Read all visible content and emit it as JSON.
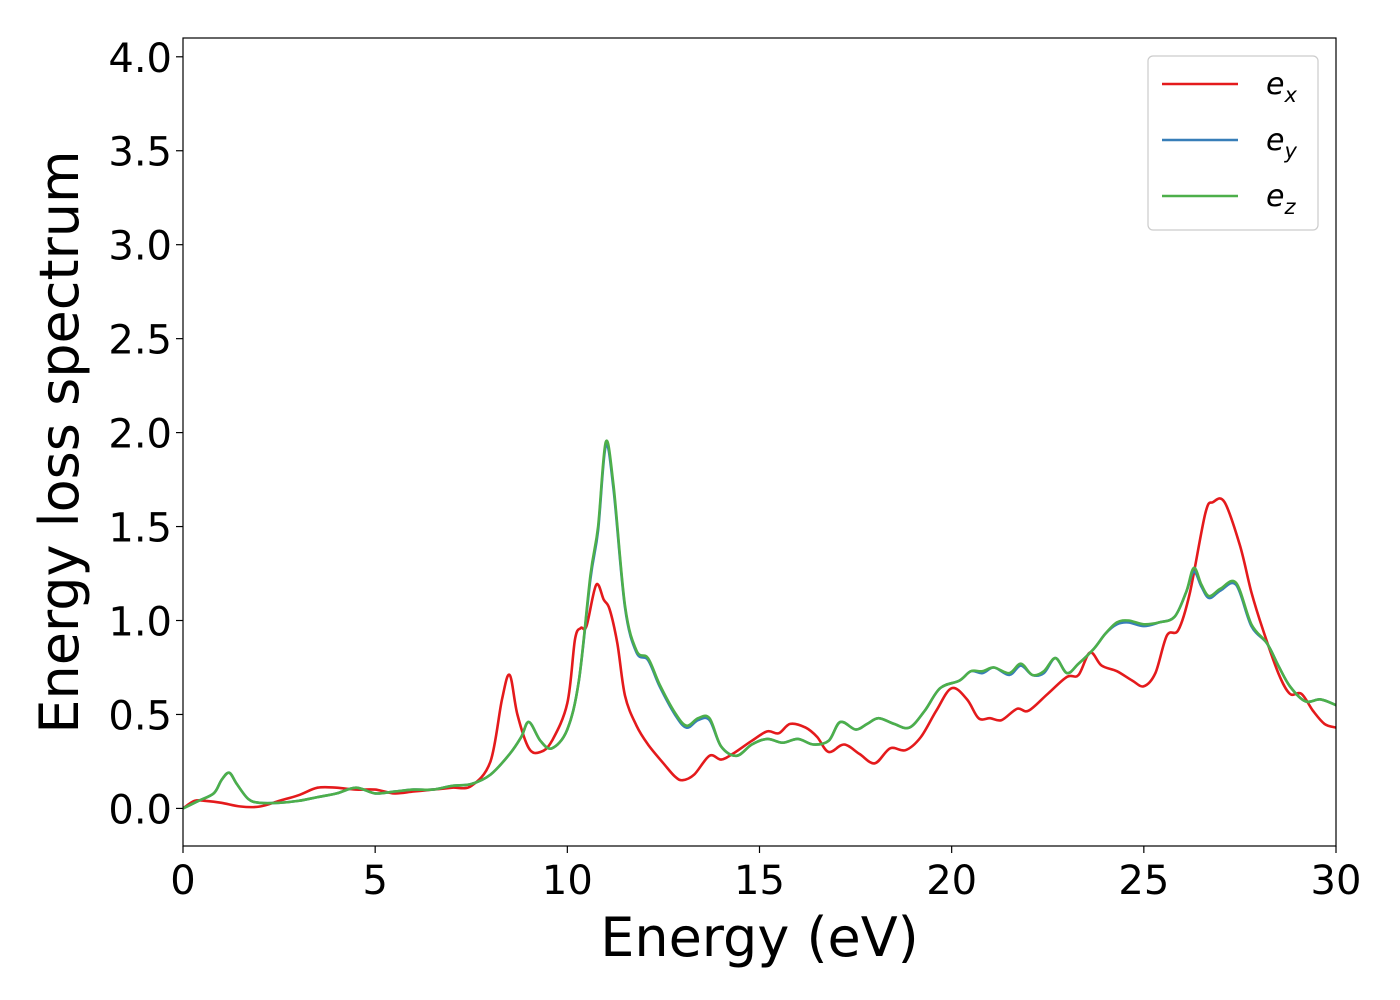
{
  "chart_data": {
    "type": "line",
    "xlabel": "Energy (eV)",
    "ylabel": "Energy loss spectrum",
    "xlim": [
      0,
      30
    ],
    "ylim": [
      -0.2,
      4.1
    ],
    "xticks": [
      0,
      5,
      10,
      15,
      20,
      25,
      30
    ],
    "yticks": [
      0.0,
      0.5,
      1.0,
      1.5,
      2.0,
      2.5,
      3.0,
      3.5,
      4.0
    ],
    "xtick_labels": [
      "0",
      "5",
      "10",
      "15",
      "20",
      "25",
      "30"
    ],
    "ytick_labels": [
      "0.0",
      "0.5",
      "1.0",
      "1.5",
      "2.0",
      "2.5",
      "3.0",
      "3.5",
      "4.0"
    ],
    "grid": false,
    "legend_position": "top-right",
    "series": [
      {
        "name": "e_x",
        "label_base": "e",
        "label_sub": "x",
        "color": "#e41a1c",
        "points": [
          [
            0.0,
            0.0
          ],
          [
            0.3,
            0.04
          ],
          [
            0.6,
            0.04
          ],
          [
            1.0,
            0.03
          ],
          [
            1.5,
            0.01
          ],
          [
            2.0,
            0.01
          ],
          [
            2.5,
            0.04
          ],
          [
            3.0,
            0.07
          ],
          [
            3.5,
            0.11
          ],
          [
            4.0,
            0.11
          ],
          [
            4.5,
            0.1
          ],
          [
            5.0,
            0.1
          ],
          [
            5.5,
            0.08
          ],
          [
            6.0,
            0.09
          ],
          [
            6.5,
            0.1
          ],
          [
            7.0,
            0.11
          ],
          [
            7.5,
            0.12
          ],
          [
            8.0,
            0.25
          ],
          [
            8.3,
            0.58
          ],
          [
            8.5,
            0.71
          ],
          [
            8.7,
            0.5
          ],
          [
            9.0,
            0.32
          ],
          [
            9.3,
            0.3
          ],
          [
            9.6,
            0.36
          ],
          [
            10.0,
            0.56
          ],
          [
            10.2,
            0.9
          ],
          [
            10.35,
            0.96
          ],
          [
            10.5,
            0.97
          ],
          [
            10.75,
            1.19
          ],
          [
            10.95,
            1.11
          ],
          [
            11.1,
            1.06
          ],
          [
            11.3,
            0.88
          ],
          [
            11.5,
            0.6
          ],
          [
            11.8,
            0.44
          ],
          [
            12.1,
            0.34
          ],
          [
            12.5,
            0.24
          ],
          [
            12.8,
            0.17
          ],
          [
            13.0,
            0.15
          ],
          [
            13.3,
            0.18
          ],
          [
            13.7,
            0.28
          ],
          [
            14.0,
            0.26
          ],
          [
            14.3,
            0.29
          ],
          [
            14.8,
            0.36
          ],
          [
            15.2,
            0.41
          ],
          [
            15.5,
            0.4
          ],
          [
            15.8,
            0.45
          ],
          [
            16.2,
            0.43
          ],
          [
            16.5,
            0.38
          ],
          [
            16.8,
            0.3
          ],
          [
            17.2,
            0.34
          ],
          [
            17.6,
            0.29
          ],
          [
            18.0,
            0.24
          ],
          [
            18.4,
            0.32
          ],
          [
            18.8,
            0.31
          ],
          [
            19.2,
            0.38
          ],
          [
            19.6,
            0.52
          ],
          [
            20.0,
            0.64
          ],
          [
            20.4,
            0.58
          ],
          [
            20.7,
            0.48
          ],
          [
            21.0,
            0.48
          ],
          [
            21.3,
            0.47
          ],
          [
            21.7,
            0.53
          ],
          [
            22.0,
            0.52
          ],
          [
            22.5,
            0.61
          ],
          [
            23.0,
            0.7
          ],
          [
            23.3,
            0.71
          ],
          [
            23.6,
            0.83
          ],
          [
            23.9,
            0.76
          ],
          [
            24.3,
            0.73
          ],
          [
            24.7,
            0.68
          ],
          [
            25.0,
            0.65
          ],
          [
            25.3,
            0.72
          ],
          [
            25.6,
            0.92
          ],
          [
            25.9,
            0.95
          ],
          [
            26.2,
            1.15
          ],
          [
            26.6,
            1.57
          ],
          [
            26.8,
            1.63
          ],
          [
            27.1,
            1.63
          ],
          [
            27.5,
            1.4
          ],
          [
            27.8,
            1.15
          ],
          [
            28.1,
            0.95
          ],
          [
            28.5,
            0.72
          ],
          [
            28.8,
            0.61
          ],
          [
            29.1,
            0.61
          ],
          [
            29.4,
            0.52
          ],
          [
            29.7,
            0.45
          ],
          [
            30.0,
            0.43
          ]
        ]
      },
      {
        "name": "e_y",
        "label_base": "e",
        "label_sub": "y",
        "color": "#377eb8",
        "points": [
          [
            0.0,
            0.0
          ],
          [
            0.4,
            0.04
          ],
          [
            0.8,
            0.08
          ],
          [
            1.0,
            0.15
          ],
          [
            1.2,
            0.19
          ],
          [
            1.4,
            0.13
          ],
          [
            1.7,
            0.05
          ],
          [
            2.0,
            0.03
          ],
          [
            2.5,
            0.03
          ],
          [
            3.0,
            0.04
          ],
          [
            3.5,
            0.06
          ],
          [
            4.0,
            0.08
          ],
          [
            4.5,
            0.11
          ],
          [
            5.0,
            0.08
          ],
          [
            5.5,
            0.09
          ],
          [
            6.0,
            0.1
          ],
          [
            6.5,
            0.1
          ],
          [
            7.0,
            0.12
          ],
          [
            7.5,
            0.13
          ],
          [
            8.0,
            0.18
          ],
          [
            8.5,
            0.29
          ],
          [
            8.8,
            0.38
          ],
          [
            9.0,
            0.46
          ],
          [
            9.3,
            0.36
          ],
          [
            9.6,
            0.32
          ],
          [
            10.0,
            0.42
          ],
          [
            10.3,
            0.68
          ],
          [
            10.6,
            1.22
          ],
          [
            10.8,
            1.48
          ],
          [
            11.0,
            1.93
          ],
          [
            11.2,
            1.7
          ],
          [
            11.5,
            1.07
          ],
          [
            11.8,
            0.83
          ],
          [
            12.1,
            0.79
          ],
          [
            12.4,
            0.65
          ],
          [
            12.8,
            0.5
          ],
          [
            13.1,
            0.43
          ],
          [
            13.4,
            0.47
          ],
          [
            13.7,
            0.47
          ],
          [
            14.0,
            0.33
          ],
          [
            14.4,
            0.28
          ],
          [
            14.8,
            0.34
          ],
          [
            15.2,
            0.37
          ],
          [
            15.6,
            0.35
          ],
          [
            16.0,
            0.37
          ],
          [
            16.4,
            0.34
          ],
          [
            16.8,
            0.36
          ],
          [
            17.1,
            0.46
          ],
          [
            17.5,
            0.42
          ],
          [
            17.8,
            0.45
          ],
          [
            18.1,
            0.48
          ],
          [
            18.5,
            0.45
          ],
          [
            18.9,
            0.43
          ],
          [
            19.3,
            0.52
          ],
          [
            19.7,
            0.64
          ],
          [
            20.2,
            0.68
          ],
          [
            20.5,
            0.73
          ],
          [
            20.8,
            0.72
          ],
          [
            21.1,
            0.75
          ],
          [
            21.5,
            0.71
          ],
          [
            21.8,
            0.76
          ],
          [
            22.1,
            0.71
          ],
          [
            22.4,
            0.72
          ],
          [
            22.7,
            0.8
          ],
          [
            23.0,
            0.72
          ],
          [
            23.3,
            0.77
          ],
          [
            23.7,
            0.85
          ],
          [
            24.0,
            0.93
          ],
          [
            24.3,
            0.98
          ],
          [
            24.6,
            0.99
          ],
          [
            25.0,
            0.97
          ],
          [
            25.4,
            0.99
          ],
          [
            25.8,
            1.02
          ],
          [
            26.1,
            1.15
          ],
          [
            26.3,
            1.26
          ],
          [
            26.5,
            1.18
          ],
          [
            26.7,
            1.12
          ],
          [
            27.0,
            1.16
          ],
          [
            27.4,
            1.19
          ],
          [
            27.8,
            0.97
          ],
          [
            28.2,
            0.88
          ],
          [
            28.5,
            0.76
          ],
          [
            28.8,
            0.65
          ],
          [
            29.2,
            0.57
          ],
          [
            29.6,
            0.58
          ],
          [
            30.0,
            0.55
          ]
        ]
      },
      {
        "name": "e_z",
        "label_base": "e",
        "label_sub": "z",
        "color": "#4daf4a",
        "points": [
          [
            0.0,
            0.0
          ],
          [
            0.4,
            0.04
          ],
          [
            0.8,
            0.08
          ],
          [
            1.0,
            0.15
          ],
          [
            1.2,
            0.19
          ],
          [
            1.4,
            0.13
          ],
          [
            1.7,
            0.05
          ],
          [
            2.0,
            0.03
          ],
          [
            2.5,
            0.03
          ],
          [
            3.0,
            0.04
          ],
          [
            3.5,
            0.06
          ],
          [
            4.0,
            0.08
          ],
          [
            4.5,
            0.11
          ],
          [
            5.0,
            0.08
          ],
          [
            5.5,
            0.09
          ],
          [
            6.0,
            0.1
          ],
          [
            6.5,
            0.1
          ],
          [
            7.0,
            0.12
          ],
          [
            7.5,
            0.13
          ],
          [
            8.0,
            0.18
          ],
          [
            8.5,
            0.29
          ],
          [
            8.8,
            0.38
          ],
          [
            9.0,
            0.46
          ],
          [
            9.3,
            0.36
          ],
          [
            9.6,
            0.32
          ],
          [
            10.0,
            0.42
          ],
          [
            10.3,
            0.68
          ],
          [
            10.6,
            1.24
          ],
          [
            10.8,
            1.5
          ],
          [
            11.0,
            1.95
          ],
          [
            11.2,
            1.72
          ],
          [
            11.5,
            1.08
          ],
          [
            11.8,
            0.84
          ],
          [
            12.1,
            0.8
          ],
          [
            12.4,
            0.66
          ],
          [
            12.8,
            0.51
          ],
          [
            13.1,
            0.44
          ],
          [
            13.4,
            0.48
          ],
          [
            13.7,
            0.48
          ],
          [
            14.0,
            0.33
          ],
          [
            14.4,
            0.28
          ],
          [
            14.8,
            0.34
          ],
          [
            15.2,
            0.37
          ],
          [
            15.6,
            0.35
          ],
          [
            16.0,
            0.37
          ],
          [
            16.4,
            0.34
          ],
          [
            16.8,
            0.36
          ],
          [
            17.1,
            0.46
          ],
          [
            17.5,
            0.42
          ],
          [
            17.8,
            0.45
          ],
          [
            18.1,
            0.48
          ],
          [
            18.5,
            0.45
          ],
          [
            18.9,
            0.43
          ],
          [
            19.3,
            0.52
          ],
          [
            19.7,
            0.64
          ],
          [
            20.2,
            0.68
          ],
          [
            20.5,
            0.73
          ],
          [
            20.8,
            0.73
          ],
          [
            21.1,
            0.75
          ],
          [
            21.5,
            0.72
          ],
          [
            21.8,
            0.77
          ],
          [
            22.1,
            0.71
          ],
          [
            22.4,
            0.73
          ],
          [
            22.7,
            0.8
          ],
          [
            23.0,
            0.72
          ],
          [
            23.3,
            0.77
          ],
          [
            23.7,
            0.85
          ],
          [
            24.0,
            0.93
          ],
          [
            24.3,
            0.99
          ],
          [
            24.6,
            1.0
          ],
          [
            25.0,
            0.98
          ],
          [
            25.4,
            0.99
          ],
          [
            25.8,
            1.02
          ],
          [
            26.1,
            1.15
          ],
          [
            26.3,
            1.28
          ],
          [
            26.5,
            1.19
          ],
          [
            26.7,
            1.13
          ],
          [
            27.0,
            1.17
          ],
          [
            27.4,
            1.2
          ],
          [
            27.8,
            0.98
          ],
          [
            28.2,
            0.88
          ],
          [
            28.5,
            0.76
          ],
          [
            28.8,
            0.65
          ],
          [
            29.2,
            0.57
          ],
          [
            29.6,
            0.58
          ],
          [
            30.0,
            0.55
          ]
        ]
      }
    ]
  }
}
